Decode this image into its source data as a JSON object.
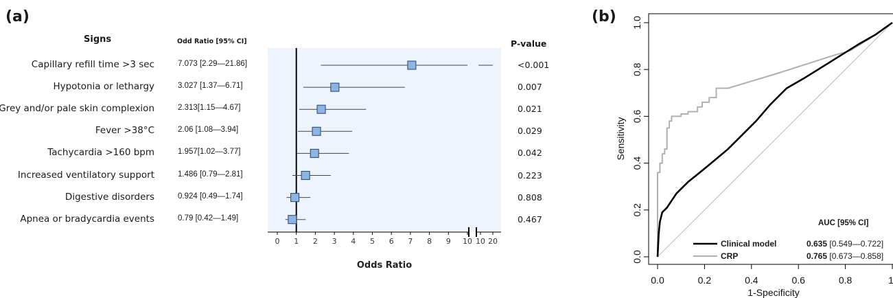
{
  "panel_a": {
    "label": "(a)",
    "signs_header": "Signs",
    "or_header": "Odd Ratio [95% CI]",
    "pvalue_header": "P-value",
    "xlabel": "Odds Ratio"
  },
  "panel_b": {
    "label": "(b)",
    "auc_header": "AUC [95% CI]",
    "ylabel": "Sensitivity",
    "xlabel": "1-Specificity"
  },
  "chart_data": [
    {
      "type": "forest",
      "title": "",
      "xlabel": "Odds Ratio",
      "axis_segments": [
        {
          "range": [
            0,
            10
          ],
          "ticks": [
            "0",
            "1",
            "2",
            "3",
            "4",
            "5",
            "6",
            "7",
            "8",
            "9",
            "10"
          ]
        },
        {
          "range": [
            10,
            20
          ],
          "ticks": [
            "10",
            "20"
          ]
        }
      ],
      "reference_line": 1,
      "rows": [
        {
          "sign": "Capillary refill time >3 sec",
          "or_text": "7.073 [2.29—21.86]",
          "or": 7.073,
          "lo": 2.29,
          "hi": 21.86,
          "p": "<0.001"
        },
        {
          "sign": "Hypotonia or lethargy",
          "or_text": "3.027  [1.37—6.71]",
          "or": 3.027,
          "lo": 1.37,
          "hi": 6.71,
          "p": "0.007"
        },
        {
          "sign": "Grey and/or pale skin complexion",
          "or_text": "2.313[1.15—4.67]",
          "or": 2.313,
          "lo": 1.15,
          "hi": 4.67,
          "p": "0.021"
        },
        {
          "sign": "Fever >38°C",
          "or_text": "2.06  [1.08—3.94]",
          "or": 2.06,
          "lo": 1.08,
          "hi": 3.94,
          "p": "0.029"
        },
        {
          "sign": "Tachycardia >160 bpm",
          "or_text": "1.957[1.02—3.77]",
          "or": 1.957,
          "lo": 1.02,
          "hi": 3.77,
          "p": "0.042"
        },
        {
          "sign": "Increased ventilatory support",
          "or_text": "1.486 [0.79—2.81]",
          "or": 1.486,
          "lo": 0.79,
          "hi": 2.81,
          "p": "0.223"
        },
        {
          "sign": "Digestive disorders",
          "or_text": "0.924 [0.49—1.74]",
          "or": 0.924,
          "lo": 0.49,
          "hi": 1.74,
          "p": "0.808"
        },
        {
          "sign": "Apnea or bradycardia events",
          "or_text": "0.79 [0.42—1.49]",
          "or": 0.79,
          "lo": 0.42,
          "hi": 1.49,
          "p": "0.467"
        }
      ]
    },
    {
      "type": "line",
      "title": "",
      "xlabel": "1-Specificity",
      "ylabel": "Sensitivity",
      "xlim": [
        0,
        1
      ],
      "ylim": [
        0,
        1
      ],
      "xticks": [
        "0.0",
        "0.2",
        "0.4",
        "0.6",
        "0.8",
        "1."
      ],
      "yticks": [
        "0.0",
        "0.2",
        "0.4",
        "0.6",
        "0.8",
        "1.0"
      ],
      "legend_placement": "bottom-right",
      "series": [
        {
          "name": "Clinical model",
          "auc_value": "0.635",
          "auc_ci": "[0.549—0.722]",
          "color": "#000000",
          "x": [
            0,
            0.005,
            0.01,
            0.02,
            0.04,
            0.06,
            0.08,
            0.1,
            0.13,
            0.18,
            0.24,
            0.3,
            0.36,
            0.42,
            0.48,
            0.55,
            0.62,
            0.7,
            0.78,
            0.86,
            0.93,
            1.0
          ],
          "y": [
            0,
            0.1,
            0.15,
            0.19,
            0.21,
            0.24,
            0.27,
            0.29,
            0.32,
            0.36,
            0.41,
            0.46,
            0.52,
            0.58,
            0.65,
            0.72,
            0.76,
            0.81,
            0.86,
            0.91,
            0.95,
            1.0
          ]
        },
        {
          "name": "CRP",
          "auc_value": "0.765",
          "auc_ci": "[0.673—0.858]",
          "color": "#b0b0b0",
          "x": [
            0,
            0,
            0.01,
            0.01,
            0.02,
            0.02,
            0.03,
            0.03,
            0.04,
            0.04,
            0.05,
            0.05,
            0.06,
            0.06,
            0.1,
            0.1,
            0.13,
            0.13,
            0.17,
            0.17,
            0.19,
            0.19,
            0.22,
            0.22,
            0.25,
            0.25,
            0.3,
            0.5,
            0.75,
            0.82,
            0.9,
            1.0
          ],
          "y": [
            0,
            0.36,
            0.36,
            0.4,
            0.4,
            0.44,
            0.44,
            0.46,
            0.46,
            0.55,
            0.55,
            0.58,
            0.58,
            0.6,
            0.6,
            0.61,
            0.61,
            0.62,
            0.62,
            0.64,
            0.64,
            0.66,
            0.66,
            0.68,
            0.68,
            0.72,
            0.72,
            0.78,
            0.86,
            0.88,
            0.93,
            1.0
          ]
        },
        {
          "name": "",
          "color": "#c0c0c0",
          "x": [
            0,
            1
          ],
          "y": [
            0,
            1
          ]
        }
      ]
    }
  ]
}
